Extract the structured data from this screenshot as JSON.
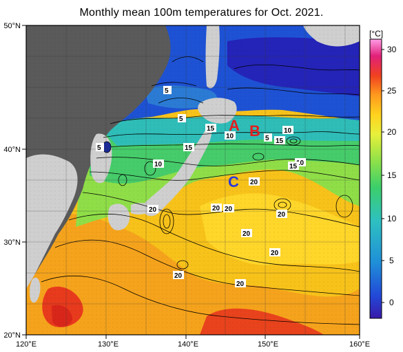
{
  "title": "Monthly mean 100m temperatures for Oct. 2021.",
  "axes": {
    "lon_ticks": [
      "120°E",
      "130°E",
      "140°E",
      "150°E",
      "160°E"
    ],
    "lat_ticks": [
      "50°N",
      "40°N",
      "30°N",
      "20°N"
    ]
  },
  "colorbar": {
    "unit": "[°C]",
    "ticks": [
      "30",
      "25",
      "20",
      "15",
      "10",
      "5",
      "0"
    ],
    "range": [
      -2,
      32
    ],
    "colors": [
      "#3a1aa8",
      "#2248d8",
      "#1f8fd8",
      "#2ec0c0",
      "#3ccf6a",
      "#8be04a",
      "#e8f03a",
      "#ffd21e",
      "#ff9a1e",
      "#f04020",
      "#e0207a",
      "#ff9ee6"
    ]
  },
  "contour_labels": [
    "5",
    "5",
    "5",
    "15",
    "10",
    "5",
    "10",
    "15",
    "15",
    "10",
    "10",
    "15",
    "20",
    "20",
    "20",
    "20",
    "20",
    "20",
    "20",
    "20",
    "20"
  ],
  "markers": {
    "A": {
      "text": "A",
      "color": "#e02020"
    },
    "B": {
      "text": "B",
      "color": "#e02020"
    },
    "C": {
      "text": "C",
      "color": "#2a3ad8"
    }
  }
}
